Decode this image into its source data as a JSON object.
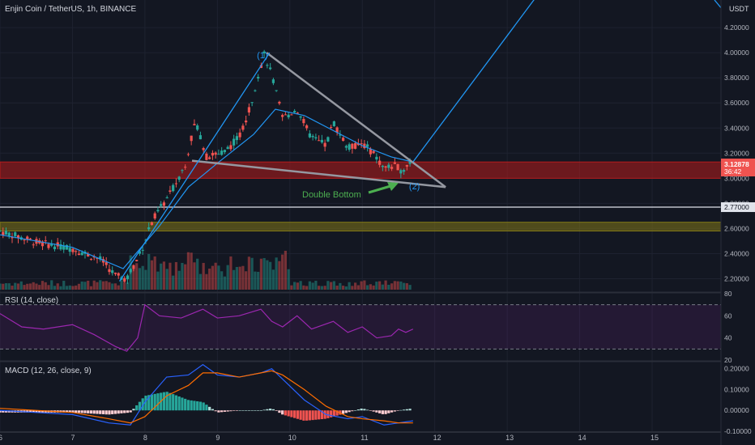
{
  "symbol": "Enjin Coin / TetherUS, 1h, BINANCE",
  "currency": "USDT",
  "colors": {
    "bg": "#131722",
    "up": "#26a69a",
    "down": "#ef5350",
    "line": "#2196f3",
    "trend": "#9598a1",
    "rsi": "#9c27b0",
    "macd": "#2962ff",
    "signal": "#ff6d00",
    "zone_red": "#b71c1c",
    "zone_yellow": "#827717",
    "annotation_green": "#4caf50"
  },
  "annotations": {
    "peak": "(1)",
    "bottom": "(2)",
    "pattern": "Double Bottom"
  },
  "current": {
    "price": "3.12878",
    "timer": "36:42"
  },
  "support_label": "2.77000",
  "chart_data": [
    {
      "type": "candlestick",
      "title": "Enjin Coin / TetherUS, 1h, BINANCE",
      "x_ticks": [
        "6",
        "7",
        "8",
        "9",
        "10",
        "11",
        "12",
        "13",
        "14",
        "15"
      ],
      "y_ticks": [
        "2.20000",
        "2.40000",
        "2.60000",
        "2.80000",
        "3.00000",
        "3.20000",
        "3.40000",
        "3.60000",
        "3.80000",
        "4.00000",
        "4.20000"
      ],
      "ylim": [
        2.1,
        4.42
      ],
      "xlim": [
        6.0,
        15.95
      ],
      "price_path": [
        [
          6.0,
          2.58
        ],
        [
          6.5,
          2.49
        ],
        [
          7.0,
          2.44
        ],
        [
          7.4,
          2.35
        ],
        [
          7.6,
          2.22
        ],
        [
          7.75,
          2.2
        ],
        [
          7.95,
          2.42
        ],
        [
          8.1,
          2.66
        ],
        [
          8.35,
          2.88
        ],
        [
          8.55,
          3.1
        ],
        [
          8.7,
          3.46
        ],
        [
          8.85,
          3.17
        ],
        [
          9.1,
          3.21
        ],
        [
          9.3,
          3.33
        ],
        [
          9.45,
          3.56
        ],
        [
          9.55,
          3.8
        ],
        [
          9.65,
          3.99
        ],
        [
          9.75,
          3.82
        ],
        [
          9.9,
          3.48
        ],
        [
          10.1,
          3.55
        ],
        [
          10.3,
          3.32
        ],
        [
          10.5,
          3.26
        ],
        [
          10.6,
          3.45
        ],
        [
          10.8,
          3.24
        ],
        [
          11.0,
          3.28
        ],
        [
          11.15,
          3.2
        ],
        [
          11.3,
          3.08
        ],
        [
          11.45,
          3.1
        ],
        [
          11.55,
          3.06
        ],
        [
          11.65,
          3.13
        ]
      ],
      "ma_path": [
        [
          6.0,
          2.55
        ],
        [
          7.0,
          2.45
        ],
        [
          7.7,
          2.28
        ],
        [
          8.2,
          2.62
        ],
        [
          8.6,
          2.93
        ],
        [
          9.0,
          3.12
        ],
        [
          9.5,
          3.35
        ],
        [
          9.8,
          3.55
        ],
        [
          10.2,
          3.5
        ],
        [
          10.6,
          3.38
        ],
        [
          11.0,
          3.26
        ],
        [
          11.4,
          3.17
        ],
        [
          11.7,
          3.13
        ]
      ],
      "zones": [
        {
          "name": "resistance-zone",
          "y1": 3.0,
          "y2": 3.13
        },
        {
          "name": "support-zone",
          "y1": 2.58,
          "y2": 2.65
        }
      ],
      "horizontal_line": 2.77,
      "trend_lines": [
        {
          "name": "upper-trendline",
          "from": [
            9.68,
            4.0
          ],
          "to": [
            12.15,
            2.93
          ]
        },
        {
          "name": "lower-trendline",
          "from": [
            8.65,
            3.14
          ],
          "to": [
            12.15,
            2.93
          ]
        },
        {
          "name": "projection-line",
          "from": [
            11.7,
            3.13
          ],
          "to": [
            13.6,
            4.6
          ]
        },
        {
          "name": "rally-line",
          "from": [
            7.65,
            2.18
          ],
          "to": [
            9.72,
            4.0
          ]
        }
      ]
    },
    {
      "type": "line",
      "title": "RSI (14, close)",
      "y_ticks": [
        "20",
        "40",
        "60",
        "80"
      ],
      "ylim": [
        20,
        80
      ],
      "bands": [
        30,
        70
      ],
      "series": [
        {
          "values": [
            [
              6.0,
              62
            ],
            [
              6.3,
              50
            ],
            [
              6.6,
              48
            ],
            [
              7.0,
              52
            ],
            [
              7.3,
              43
            ],
            [
              7.6,
              32
            ],
            [
              7.75,
              28
            ],
            [
              7.9,
              40
            ],
            [
              8.0,
              70
            ],
            [
              8.2,
              60
            ],
            [
              8.5,
              58
            ],
            [
              8.8,
              66
            ],
            [
              9.0,
              58
            ],
            [
              9.3,
              60
            ],
            [
              9.6,
              66
            ],
            [
              9.75,
              55
            ],
            [
              9.9,
              50
            ],
            [
              10.1,
              60
            ],
            [
              10.3,
              48
            ],
            [
              10.6,
              55
            ],
            [
              10.8,
              45
            ],
            [
              11.0,
              50
            ],
            [
              11.2,
              40
            ],
            [
              11.4,
              42
            ],
            [
              11.5,
              48
            ],
            [
              11.6,
              45
            ],
            [
              11.7,
              48
            ]
          ]
        }
      ]
    },
    {
      "type": "line",
      "title": "MACD (12, 26, close, 9)",
      "y_ticks": [
        "-0.10000",
        "0.00000",
        "0.10000",
        "0.20000"
      ],
      "ylim": [
        -0.1,
        0.23
      ],
      "series": [
        {
          "name": "MACD",
          "values": [
            [
              6.0,
              0.0
            ],
            [
              6.5,
              -0.01
            ],
            [
              7.0,
              -0.02
            ],
            [
              7.5,
              -0.06
            ],
            [
              7.8,
              -0.07
            ],
            [
              8.0,
              0.04
            ],
            [
              8.3,
              0.16
            ],
            [
              8.6,
              0.17
            ],
            [
              8.8,
              0.22
            ],
            [
              9.0,
              0.17
            ],
            [
              9.3,
              0.16
            ],
            [
              9.6,
              0.18
            ],
            [
              9.75,
              0.2
            ],
            [
              9.9,
              0.15
            ],
            [
              10.2,
              0.05
            ],
            [
              10.5,
              -0.02
            ],
            [
              10.8,
              -0.04
            ],
            [
              11.0,
              -0.03
            ],
            [
              11.3,
              -0.07
            ],
            [
              11.5,
              -0.06
            ],
            [
              11.7,
              -0.05
            ]
          ]
        },
        {
          "name": "Signal",
          "values": [
            [
              6.0,
              0.01
            ],
            [
              6.5,
              0.0
            ],
            [
              7.0,
              -0.01
            ],
            [
              7.5,
              -0.04
            ],
            [
              7.8,
              -0.06
            ],
            [
              8.0,
              -0.03
            ],
            [
              8.3,
              0.07
            ],
            [
              8.6,
              0.12
            ],
            [
              8.8,
              0.18
            ],
            [
              9.0,
              0.18
            ],
            [
              9.3,
              0.16
            ],
            [
              9.6,
              0.18
            ],
            [
              9.75,
              0.19
            ],
            [
              9.9,
              0.17
            ],
            [
              10.2,
              0.1
            ],
            [
              10.5,
              0.02
            ],
            [
              10.8,
              -0.03
            ],
            [
              11.0,
              -0.04
            ],
            [
              11.3,
              -0.05
            ],
            [
              11.5,
              -0.06
            ],
            [
              11.7,
              -0.06
            ]
          ]
        }
      ]
    }
  ]
}
